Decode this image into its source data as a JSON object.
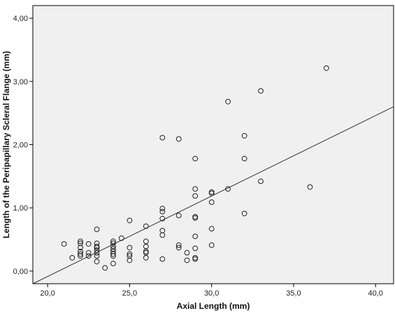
{
  "chart_data": {
    "type": "scatter",
    "title": "",
    "xlabel": "Axial Length (mm)",
    "ylabel": "Length of the Peripapillary Scleral Flange (mm)",
    "xlim": [
      19.1,
      41.1
    ],
    "ylim": [
      -0.2,
      4.2
    ],
    "x_ticks": [
      20,
      25,
      30,
      35,
      40
    ],
    "x_tick_labels": [
      "20,0",
      "25,0",
      "30,0",
      "35,0",
      "40,0"
    ],
    "y_ticks": [
      0,
      1,
      2,
      3,
      4
    ],
    "y_tick_labels": [
      "0,00",
      "1,00",
      "2,00",
      "3,00",
      "4,00"
    ],
    "plot_background": "#f0f0f0",
    "grid": false,
    "legend": "none",
    "series": [
      {
        "values": [
          [
            21.0,
            0.43
          ],
          [
            21.5,
            0.21
          ],
          [
            22.0,
            0.47
          ],
          [
            22.0,
            0.44
          ],
          [
            22.0,
            0.37
          ],
          [
            22.0,
            0.31
          ],
          [
            22.0,
            0.27
          ],
          [
            22.0,
            0.24
          ],
          [
            22.5,
            0.43
          ],
          [
            22.5,
            0.29
          ],
          [
            22.5,
            0.24
          ],
          [
            23.0,
            0.66
          ],
          [
            23.0,
            0.44
          ],
          [
            23.0,
            0.39
          ],
          [
            23.0,
            0.37
          ],
          [
            23.0,
            0.33
          ],
          [
            23.0,
            0.29
          ],
          [
            23.0,
            0.24
          ],
          [
            23.0,
            0.15
          ],
          [
            23.5,
            0.05
          ],
          [
            24.0,
            0.47
          ],
          [
            24.0,
            0.44
          ],
          [
            24.0,
            0.39
          ],
          [
            24.0,
            0.35
          ],
          [
            24.0,
            0.31
          ],
          [
            24.0,
            0.27
          ],
          [
            24.0,
            0.24
          ],
          [
            24.0,
            0.12
          ],
          [
            24.5,
            0.52
          ],
          [
            25.0,
            0.8
          ],
          [
            25.0,
            0.37
          ],
          [
            25.0,
            0.27
          ],
          [
            25.0,
            0.24
          ],
          [
            25.0,
            0.17
          ],
          [
            26.0,
            0.71
          ],
          [
            26.0,
            0.47
          ],
          [
            26.0,
            0.39
          ],
          [
            26.0,
            0.31
          ],
          [
            26.0,
            0.29
          ],
          [
            26.0,
            0.21
          ],
          [
            27.0,
            2.11
          ],
          [
            27.0,
            0.99
          ],
          [
            27.0,
            0.94
          ],
          [
            27.0,
            0.83
          ],
          [
            27.0,
            0.64
          ],
          [
            27.0,
            0.57
          ],
          [
            27.0,
            0.19
          ],
          [
            28.0,
            2.09
          ],
          [
            28.0,
            0.88
          ],
          [
            28.0,
            0.41
          ],
          [
            28.0,
            0.37
          ],
          [
            28.5,
            0.29
          ],
          [
            28.5,
            0.17
          ],
          [
            29.0,
            1.78
          ],
          [
            29.0,
            1.3
          ],
          [
            29.0,
            1.19
          ],
          [
            29.0,
            0.86
          ],
          [
            29.0,
            0.84
          ],
          [
            29.0,
            0.55
          ],
          [
            29.0,
            0.36
          ],
          [
            29.0,
            0.21
          ],
          [
            29.0,
            0.19
          ],
          [
            30.0,
            1.25
          ],
          [
            30.0,
            1.23
          ],
          [
            30.0,
            1.09
          ],
          [
            30.0,
            0.67
          ],
          [
            30.0,
            0.41
          ],
          [
            31.0,
            2.68
          ],
          [
            31.0,
            1.3
          ],
          [
            32.0,
            2.14
          ],
          [
            32.0,
            1.78
          ],
          [
            32.0,
            0.91
          ],
          [
            33.0,
            2.85
          ],
          [
            33.0,
            1.42
          ],
          [
            36.0,
            1.33
          ],
          [
            37.0,
            3.21
          ]
        ]
      }
    ],
    "fit_line": {
      "type": "linear",
      "points": [
        [
          19.1,
          -0.2
        ],
        [
          41.1,
          2.6
        ]
      ]
    }
  }
}
